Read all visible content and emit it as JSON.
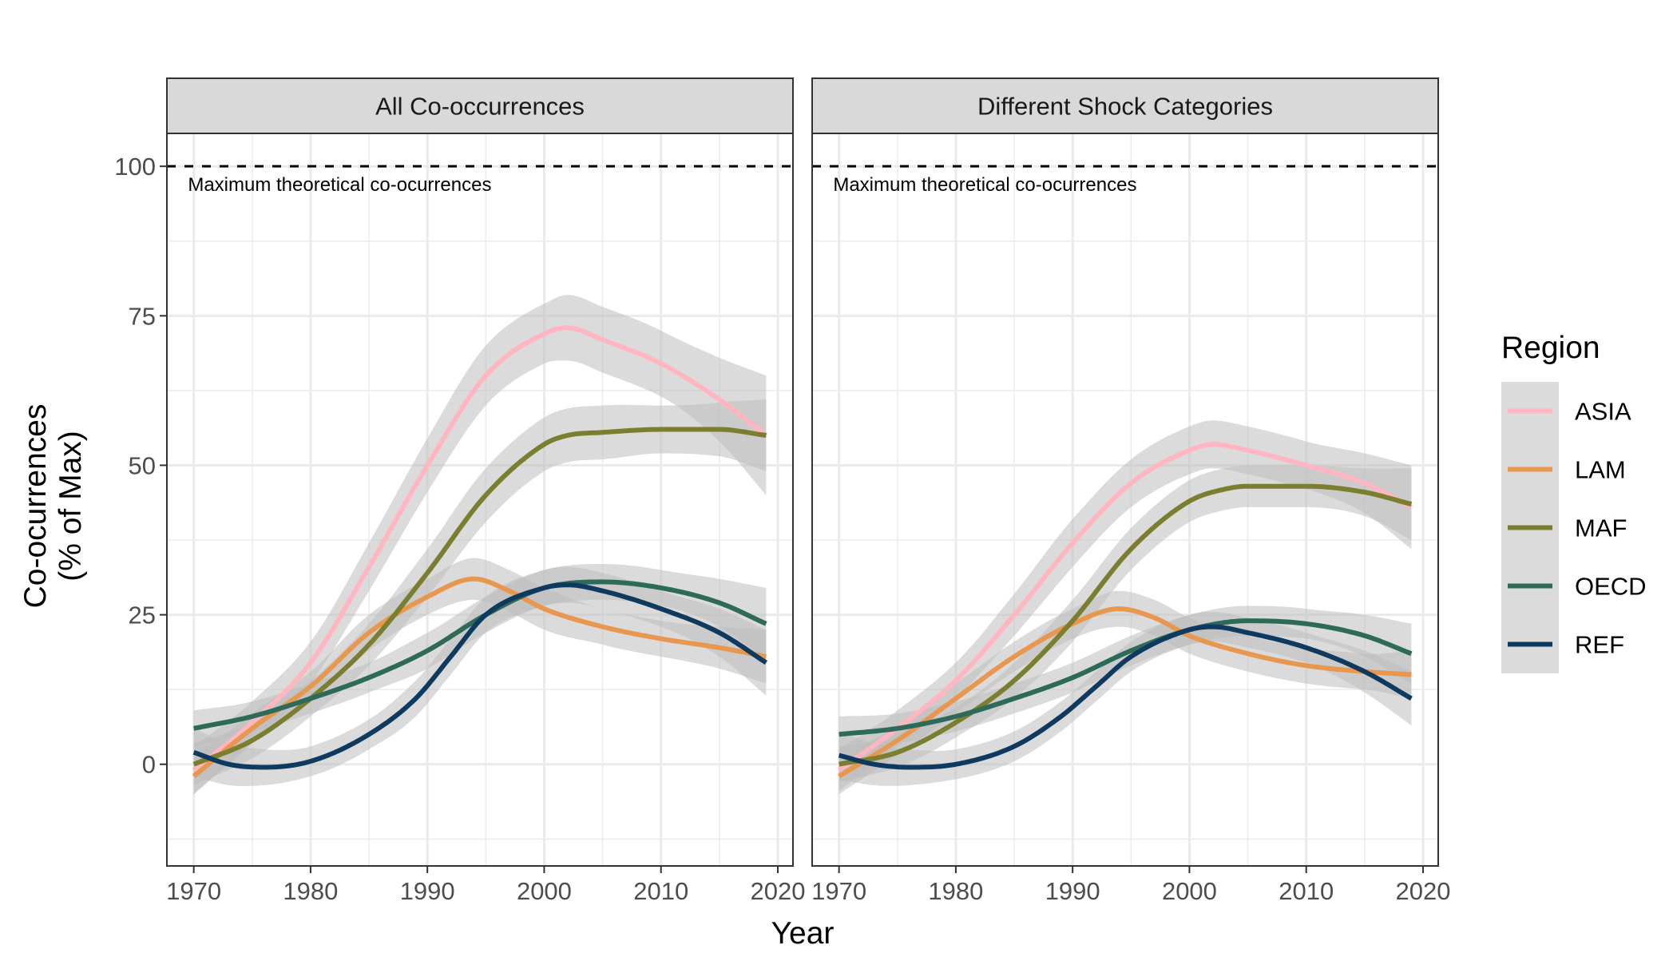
{
  "chart_data": {
    "type": "line",
    "xlabel": "Year",
    "ylabel_lines": [
      "Co-ocurrences",
      "(% of Max)"
    ],
    "xlim": [
      1967.7,
      2021.3
    ],
    "ylim": [
      -17,
      105.5
    ],
    "x_ticks": [
      1970,
      1980,
      1990,
      2000,
      2010,
      2020
    ],
    "y_ticks": [
      0,
      25,
      50,
      75,
      100
    ],
    "grid": true,
    "reference_line": {
      "y": 100,
      "style": "dashed",
      "label": "Maximum theoretical co-ocurrences"
    },
    "legend": {
      "title": "Region",
      "placement": "right",
      "entries": [
        "ASIA",
        "LAM",
        "MAF",
        "OECD",
        "REF"
      ]
    },
    "colors": {
      "ASIA": "#FFB6C1",
      "LAM": "#E8974E",
      "MAF": "#7B7E2E",
      "OECD": "#2D6A5A",
      "REF": "#0F3A5F",
      "ribbon": "#BEBEBE",
      "strip_fill": "#D9D9D9",
      "grid": "#EBEBEB"
    },
    "panels": [
      {
        "title": "All Co-occurrences",
        "series": [
          {
            "name": "ASIA",
            "x": [
              1970,
              1975,
              1980,
              1985,
              1990,
              1995,
              2000,
              2002,
              2005,
              2010,
              2015,
              2019
            ],
            "y": [
              -1,
              7,
              17,
              33,
              50,
              65,
              72,
              73,
              71,
              67,
              61,
              55
            ],
            "se": [
              4,
              3.5,
              3.5,
              4,
              4.5,
              5,
              5,
              5.5,
              5.5,
              5.5,
              7,
              10
            ]
          },
          {
            "name": "LAM",
            "x": [
              1970,
              1975,
              1980,
              1985,
              1990,
              1994,
              1997,
              2000,
              2005,
              2010,
              2015,
              2019
            ],
            "y": [
              -2,
              6,
              13,
              22,
              28,
              31,
              29,
              26,
              23,
              21,
              19.5,
              18
            ],
            "se": [
              3,
              2.5,
              2.5,
              3,
              3,
              3.5,
              3.5,
              3.5,
              3,
              3,
              3.5,
              4.5
            ]
          },
          {
            "name": "MAF",
            "x": [
              1970,
              1975,
              1980,
              1985,
              1990,
              1995,
              2000,
              2002,
              2005,
              2010,
              2015,
              2019
            ],
            "y": [
              0,
              4,
              11,
              20,
              32,
              45,
              53.5,
              55,
              55.5,
              56,
              56,
              55
            ],
            "se": [
              3.5,
              3,
              3,
              3.5,
              4,
              4.5,
              4.5,
              4.5,
              4.5,
              4,
              4.5,
              6
            ]
          },
          {
            "name": "OECD",
            "x": [
              1970,
              1975,
              1980,
              1985,
              1990,
              1995,
              2000,
              2005,
              2010,
              2015,
              2019
            ],
            "y": [
              6,
              8,
              11,
              14.5,
              19,
              25,
              29.5,
              30.5,
              29.5,
              27,
              23.5
            ],
            "se": [
              3,
              2.5,
              2.5,
              2.5,
              3,
              3,
              3,
              3,
              3,
              4,
              6
            ]
          },
          {
            "name": "REF",
            "x": [
              1970,
              1973,
              1976,
              1980,
              1985,
              1989,
              1992,
              1995,
              2000,
              2002,
              2005,
              2010,
              2015,
              2019
            ],
            "y": [
              2,
              0,
              -0.5,
              0.5,
              5,
              11,
              18,
              25,
              29.5,
              30,
              29,
              26,
              22,
              17
            ],
            "se": [
              4,
              3.5,
              3,
              2.5,
              2.5,
              3,
              3,
              3,
              3,
              3,
              3,
              3,
              4,
              5.5
            ]
          }
        ]
      },
      {
        "title": "Different Shock Categories",
        "series": [
          {
            "name": "ASIA",
            "x": [
              1970,
              1975,
              1980,
              1985,
              1990,
              1995,
              2000,
              2002,
              2005,
              2010,
              2015,
              2019
            ],
            "y": [
              -1,
              6,
              14,
              25,
              37,
              47,
              52.5,
              53.5,
              52.5,
              50,
              47,
              43
            ],
            "se": [
              3.5,
              3,
              3,
              3.5,
              4,
              4,
              4,
              4,
              4,
              4,
              5,
              7
            ]
          },
          {
            "name": "LAM",
            "x": [
              1970,
              1975,
              1980,
              1985,
              1990,
              1994,
              1997,
              2000,
              2005,
              2010,
              2015,
              2019
            ],
            "y": [
              -2,
              4,
              11,
              18,
              23.5,
              26,
              24.5,
              21.5,
              18.5,
              16.5,
              15.5,
              15
            ],
            "se": [
              3,
              2.5,
              2.5,
              2.5,
              2.5,
              3,
              3,
              3,
              3,
              3,
              3,
              4
            ]
          },
          {
            "name": "MAF",
            "x": [
              1970,
              1975,
              1980,
              1985,
              1990,
              1995,
              2000,
              2003,
              2005,
              2010,
              2015,
              2019
            ],
            "y": [
              0,
              2,
              7,
              14,
              24,
              36,
              44,
              46,
              46.5,
              46.5,
              45.5,
              43.5
            ],
            "se": [
              3,
              2.5,
              2.5,
              3,
              3.5,
              3.5,
              3.5,
              3.5,
              3.5,
              3.5,
              4,
              6
            ]
          },
          {
            "name": "OECD",
            "x": [
              1970,
              1975,
              1980,
              1985,
              1990,
              1995,
              2000,
              2005,
              2010,
              2015,
              2019
            ],
            "y": [
              5,
              6,
              8,
              11,
              14.5,
              19,
              22.5,
              24,
              23.5,
              21.5,
              18.5
            ],
            "se": [
              3,
              2.5,
              2.5,
              2.5,
              2.5,
              2.5,
              2.5,
              2.5,
              2.5,
              3.5,
              5
            ]
          },
          {
            "name": "REF",
            "x": [
              1970,
              1973,
              1976,
              1980,
              1985,
              1989,
              1992,
              1995,
              2000,
              2002,
              2005,
              2010,
              2015,
              2019
            ],
            "y": [
              1.5,
              0,
              -0.5,
              0,
              3,
              8,
              13,
              18,
              22.5,
              23,
              22,
              19.5,
              15.5,
              11
            ],
            "se": [
              4,
              3.5,
              3,
              2.5,
              2.5,
              2.5,
              2.5,
              2.5,
              2.5,
              2.5,
              2.5,
              2.5,
              3.5,
              4.5
            ]
          }
        ]
      }
    ]
  }
}
